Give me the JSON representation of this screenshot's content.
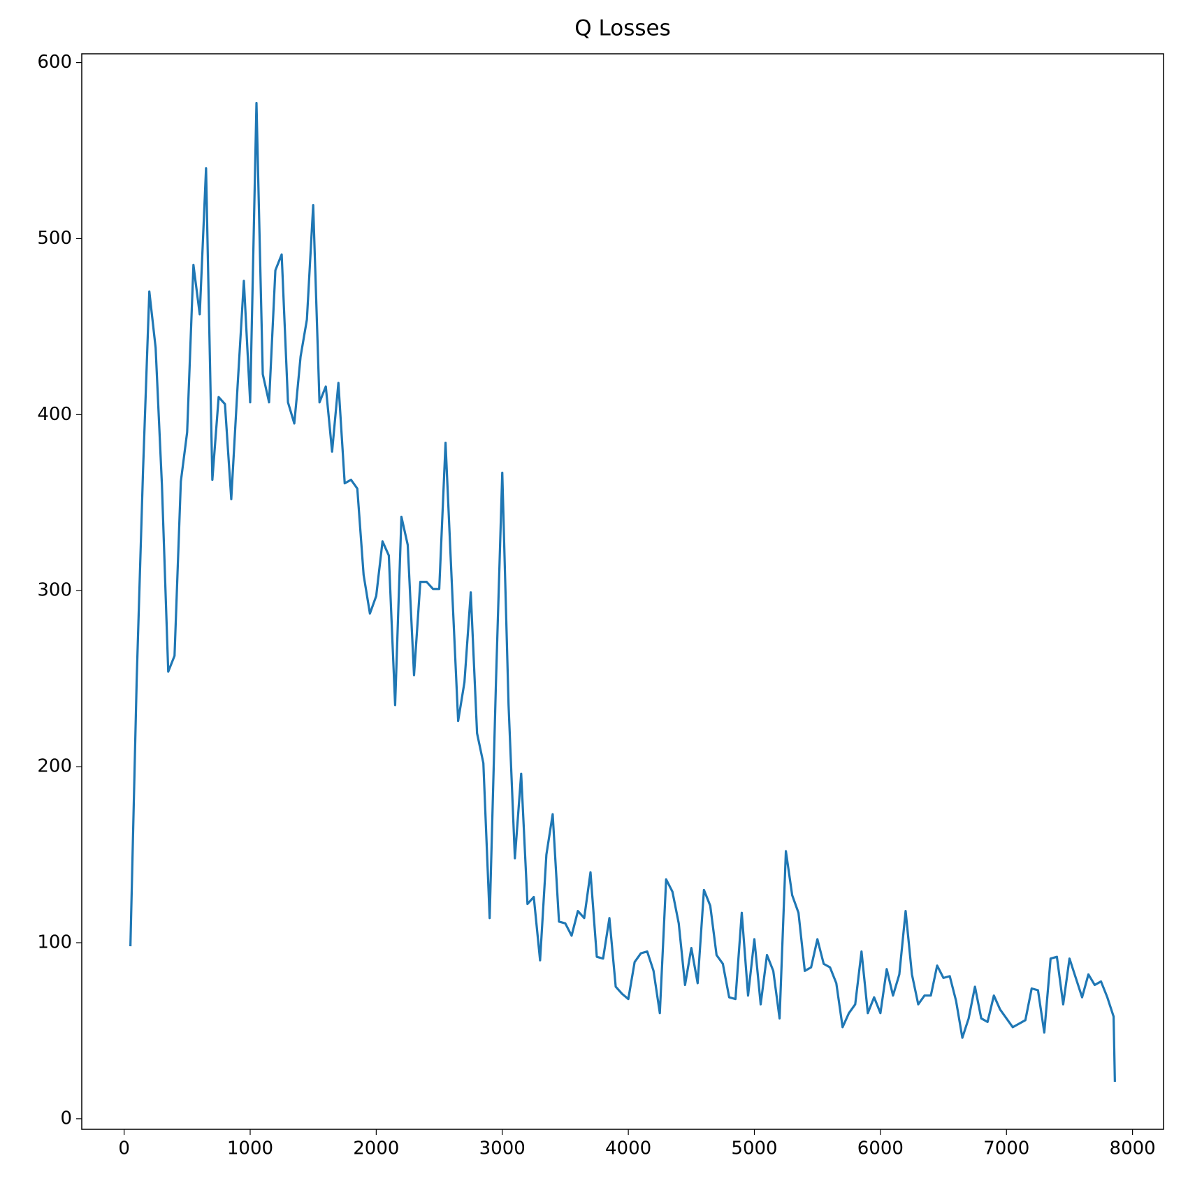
{
  "chart_data": {
    "type": "line",
    "title": "Q Losses",
    "x": [
      50,
      100,
      150,
      200,
      250,
      300,
      350,
      400,
      450,
      500,
      550,
      600,
      650,
      700,
      750,
      800,
      850,
      900,
      950,
      1000,
      1050,
      1100,
      1150,
      1200,
      1250,
      1300,
      1350,
      1400,
      1450,
      1500,
      1550,
      1600,
      1650,
      1700,
      1750,
      1800,
      1850,
      1900,
      1950,
      2000,
      2050,
      2100,
      2150,
      2200,
      2250,
      2300,
      2350,
      2400,
      2450,
      2500,
      2550,
      2600,
      2650,
      2700,
      2750,
      2800,
      2850,
      2900,
      2950,
      3000,
      3050,
      3100,
      3150,
      3200,
      3250,
      3300,
      3350,
      3400,
      3450,
      3500,
      3550,
      3600,
      3650,
      3700,
      3750,
      3800,
      3850,
      3900,
      3950,
      4000,
      4050,
      4100,
      4150,
      4200,
      4250,
      4300,
      4350,
      4400,
      4450,
      4500,
      4550,
      4600,
      4650,
      4700,
      4750,
      4800,
      4850,
      4900,
      4950,
      5000,
      5050,
      5100,
      5150,
      5200,
      5250,
      5300,
      5350,
      5400,
      5450,
      5500,
      5550,
      5600,
      5650,
      5700,
      5750,
      5800,
      5850,
      5900,
      5950,
      6000,
      6050,
      6100,
      6150,
      6200,
      6250,
      6300,
      6350,
      6400,
      6450,
      6500,
      6550,
      6600,
      6650,
      6700,
      6750,
      6800,
      6850,
      6900,
      6950,
      7000,
      7050,
      7100,
      7150,
      7200,
      7250,
      7300,
      7350,
      7400,
      7450,
      7500,
      7550,
      7600,
      7650,
      7700,
      7750,
      7800,
      7850,
      7860
    ],
    "series": [
      {
        "color": "#1f77b4",
        "values": [
          98,
          250,
          368,
          470,
          438,
          360,
          254,
          263,
          362,
          390,
          485,
          457,
          540,
          363,
          410,
          406,
          352,
          416,
          476,
          407,
          577,
          423,
          407,
          482,
          491,
          407,
          395,
          433,
          454,
          519,
          407,
          416,
          379,
          418,
          361,
          363,
          358,
          309,
          287,
          297,
          328,
          320,
          235,
          342,
          326,
          252,
          305,
          305,
          301,
          301,
          384,
          304,
          226,
          248,
          299,
          219,
          202,
          114,
          248,
          367,
          235,
          148,
          196,
          122,
          126,
          90,
          150,
          173,
          112,
          111,
          104,
          118,
          114,
          140,
          92,
          91,
          114,
          75,
          71,
          68,
          89,
          94,
          95,
          84,
          60,
          136,
          129,
          111,
          76,
          97,
          77,
          130,
          121,
          93,
          88,
          69,
          68,
          117,
          70,
          102,
          65,
          93,
          84,
          57,
          152,
          127,
          117,
          84,
          86,
          102,
          88,
          86,
          77,
          52,
          60,
          65,
          95,
          60,
          69,
          60,
          85,
          70,
          82,
          118,
          82,
          65,
          70,
          70,
          87,
          80,
          81,
          67,
          46,
          57,
          75,
          57,
          55,
          70,
          62,
          57,
          52,
          54,
          56,
          74,
          73,
          49,
          91,
          92,
          65,
          91,
          80,
          69,
          82,
          76,
          78,
          69,
          58,
          21
        ]
      }
    ],
    "xlim": [
      -336,
      8246
    ],
    "ylim": [
      -6,
      605
    ],
    "xticks": [
      0,
      1000,
      2000,
      3000,
      4000,
      5000,
      6000,
      7000,
      8000
    ],
    "yticks": [
      0,
      100,
      200,
      300,
      400,
      500,
      600
    ]
  }
}
